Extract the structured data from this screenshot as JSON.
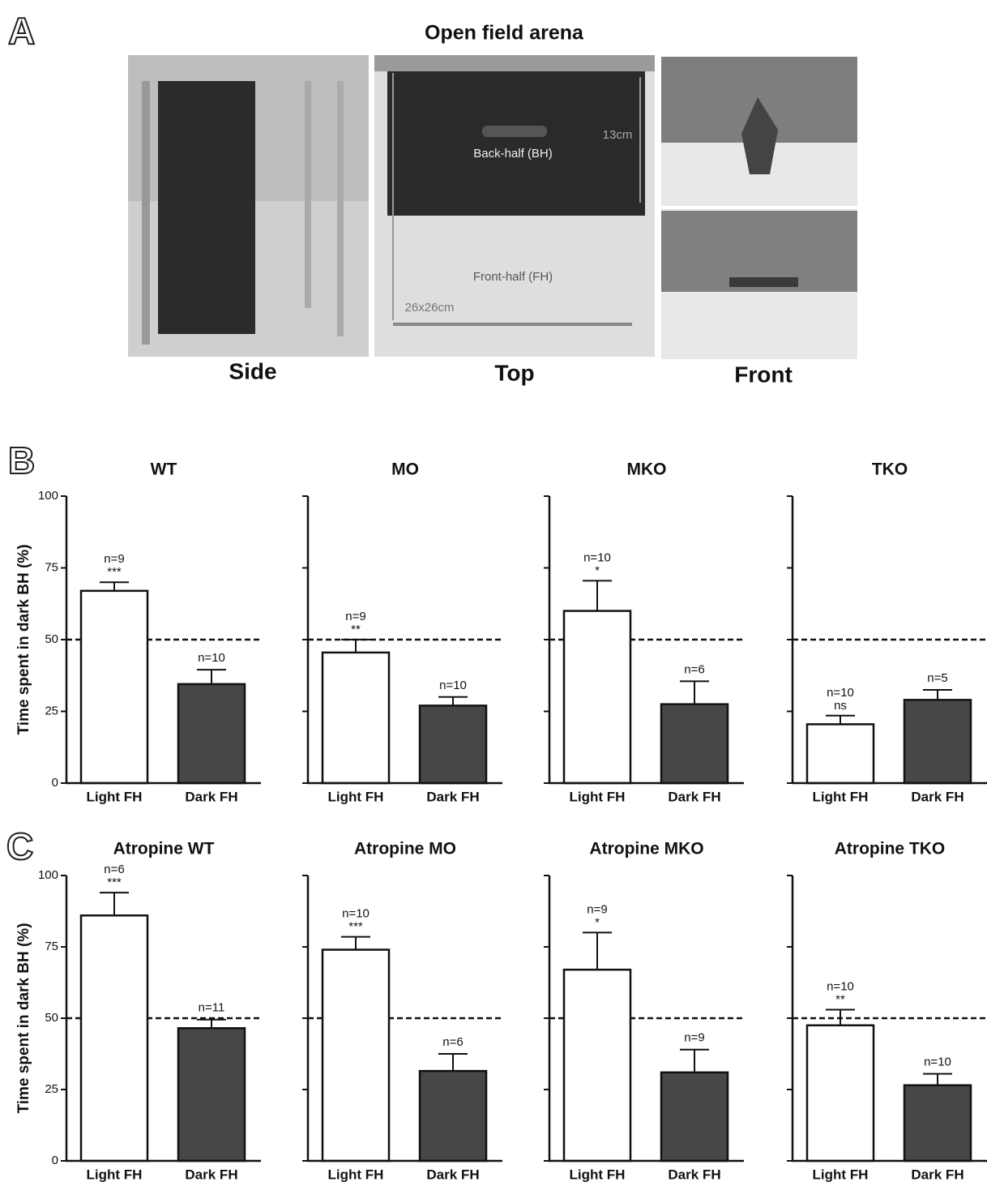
{
  "panel_labels": [
    "A",
    "B",
    "C"
  ],
  "panel_a": {
    "title": "Open field arena",
    "captions": [
      "Side",
      "Top",
      "Front"
    ],
    "annotations": [
      "Back-half (BH)",
      "13cm",
      "Front-half (FH)",
      "26x26cm"
    ]
  },
  "chart_data": [
    {
      "type": "bar",
      "title": "WT",
      "ylabel": "Time spent in dark BH (%)",
      "categories": [
        "Light FH",
        "Dark FH"
      ],
      "values": [
        67,
        34.5
      ],
      "errors": [
        3,
        5
      ],
      "n_labels": [
        "n=9",
        "n=10"
      ],
      "significance": "***",
      "colors": [
        "#ffffff",
        "#474747"
      ],
      "ylim": [
        0,
        100
      ],
      "yticks": [
        0,
        25,
        50,
        75,
        100
      ],
      "ytick_labels": true,
      "refline": 50
    },
    {
      "type": "bar",
      "title": "MO",
      "categories": [
        "Light FH",
        "Dark FH"
      ],
      "values": [
        45.5,
        27
      ],
      "errors": [
        4.5,
        3
      ],
      "n_labels": [
        "n=9",
        "n=10"
      ],
      "significance": "**",
      "colors": [
        "#ffffff",
        "#474747"
      ],
      "ylim": [
        0,
        100
      ],
      "yticks": [
        0,
        25,
        50,
        75,
        100
      ],
      "ytick_labels": false,
      "refline": 50
    },
    {
      "type": "bar",
      "title": "MKO",
      "categories": [
        "Light FH",
        "Dark FH"
      ],
      "values": [
        60,
        27.5
      ],
      "errors": [
        10.5,
        8
      ],
      "n_labels": [
        "n=10",
        "n=6"
      ],
      "significance": "*",
      "colors": [
        "#ffffff",
        "#474747"
      ],
      "ylim": [
        0,
        100
      ],
      "yticks": [
        0,
        25,
        50,
        75,
        100
      ],
      "ytick_labels": false,
      "refline": 50
    },
    {
      "type": "bar",
      "title": "TKO",
      "categories": [
        "Light FH",
        "Dark FH"
      ],
      "values": [
        20.5,
        29
      ],
      "errors": [
        3,
        3.5
      ],
      "n_labels": [
        "n=10",
        "n=5"
      ],
      "significance": "ns",
      "colors": [
        "#ffffff",
        "#474747"
      ],
      "ylim": [
        0,
        100
      ],
      "yticks": [
        0,
        25,
        50,
        75,
        100
      ],
      "ytick_labels": false,
      "refline": 50
    },
    {
      "type": "bar",
      "title": "Atropine WT",
      "ylabel": "Time spent in dark BH (%)",
      "categories": [
        "Light FH",
        "Dark FH"
      ],
      "values": [
        86,
        46.5
      ],
      "errors": [
        8,
        3
      ],
      "n_labels": [
        "n=6",
        "n=11"
      ],
      "significance": "***",
      "colors": [
        "#ffffff",
        "#474747"
      ],
      "ylim": [
        0,
        100
      ],
      "yticks": [
        0,
        25,
        50,
        75,
        100
      ],
      "ytick_labels": true,
      "refline": 50
    },
    {
      "type": "bar",
      "title": "Atropine MO",
      "categories": [
        "Light FH",
        "Dark FH"
      ],
      "values": [
        74,
        31.5
      ],
      "errors": [
        4.5,
        6
      ],
      "n_labels": [
        "n=10",
        "n=6"
      ],
      "significance": "***",
      "colors": [
        "#ffffff",
        "#474747"
      ],
      "ylim": [
        0,
        100
      ],
      "yticks": [
        0,
        25,
        50,
        75,
        100
      ],
      "ytick_labels": false,
      "refline": 50
    },
    {
      "type": "bar",
      "title": "Atropine MKO",
      "categories": [
        "Light FH",
        "Dark FH"
      ],
      "values": [
        67,
        31
      ],
      "errors": [
        13,
        8
      ],
      "n_labels": [
        "n=9",
        "n=9"
      ],
      "significance": "*",
      "colors": [
        "#ffffff",
        "#474747"
      ],
      "ylim": [
        0,
        100
      ],
      "yticks": [
        0,
        25,
        50,
        75,
        100
      ],
      "ytick_labels": false,
      "refline": 50
    },
    {
      "type": "bar",
      "title": "Atropine TKO",
      "categories": [
        "Light FH",
        "Dark FH"
      ],
      "values": [
        47.5,
        26.5
      ],
      "errors": [
        5.5,
        4
      ],
      "n_labels": [
        "n=10",
        "n=10"
      ],
      "significance": "**",
      "colors": [
        "#ffffff",
        "#474747"
      ],
      "ylim": [
        0,
        100
      ],
      "yticks": [
        0,
        25,
        50,
        75,
        100
      ],
      "ytick_labels": false,
      "refline": 50
    }
  ]
}
